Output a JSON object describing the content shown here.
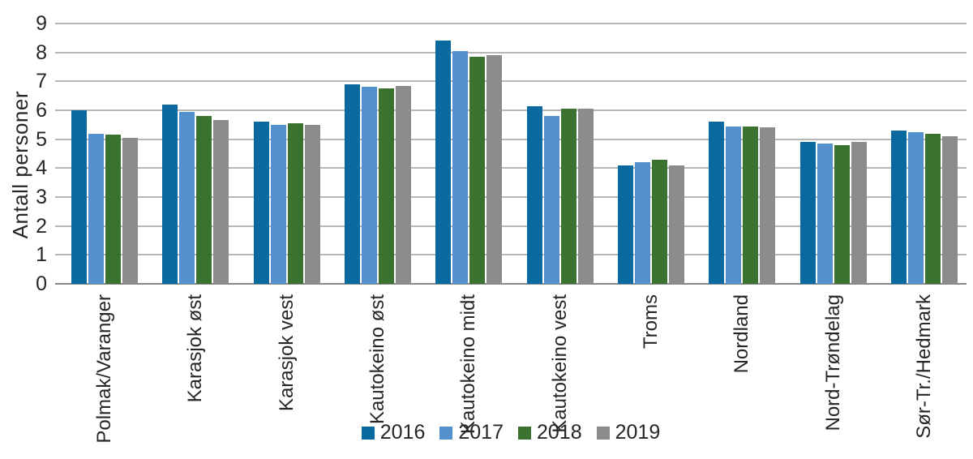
{
  "chart_data": {
    "type": "bar",
    "title": "",
    "xlabel": "",
    "ylabel": "Antall personer",
    "ylim": [
      0,
      9
    ],
    "yticks": [
      0,
      1,
      2,
      3,
      4,
      5,
      6,
      7,
      8,
      9
    ],
    "grid": true,
    "legend_position": "bottom",
    "categories": [
      "Polmak/Varanger",
      "Karasjok øst",
      "Karasjok vest",
      "Kautokeino øst",
      "Kautokeino midt",
      "Kautokeino vest",
      "Troms",
      "Nordland",
      "Nord-Trøndelag",
      "Sør-Tr./Hedmark"
    ],
    "series": [
      {
        "name": "2016",
        "color": "#0a6a9f",
        "values": [
          6.0,
          6.2,
          5.6,
          6.9,
          8.4,
          6.15,
          4.1,
          5.6,
          4.9,
          5.3
        ]
      },
      {
        "name": "2017",
        "color": "#5590ce",
        "values": [
          5.2,
          5.95,
          5.5,
          6.8,
          8.05,
          5.8,
          4.2,
          5.45,
          4.85,
          5.25
        ]
      },
      {
        "name": "2018",
        "color": "#3c7230",
        "values": [
          5.15,
          5.8,
          5.55,
          6.75,
          7.85,
          6.05,
          4.3,
          5.45,
          4.8,
          5.2
        ]
      },
      {
        "name": "2019",
        "color": "#8c8c8c",
        "values": [
          5.05,
          5.65,
          5.5,
          6.85,
          7.9,
          6.05,
          4.1,
          5.4,
          4.9,
          5.1
        ]
      }
    ]
  },
  "colors": {
    "gridline": "#b7b7b7",
    "baseline": "#878787",
    "text": "#262626",
    "background": "#ffffff"
  }
}
